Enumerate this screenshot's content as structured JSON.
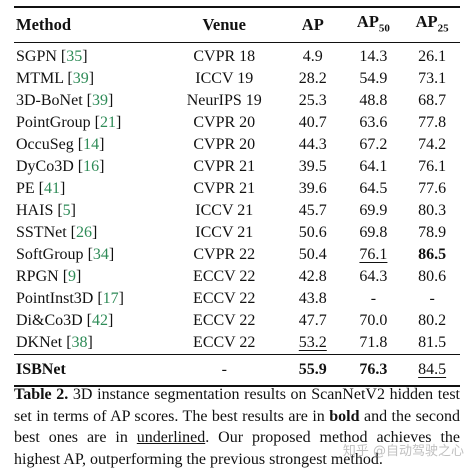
{
  "table": {
    "headers": {
      "method": "Method",
      "venue": "Venue",
      "ap": "AP",
      "ap50_base": "AP",
      "ap50_sub": "50",
      "ap25_base": "AP",
      "ap25_sub": "25"
    },
    "rows": [
      {
        "name": "SGPN",
        "ref": "35",
        "venue": "CVPR 18",
        "ap": "4.9",
        "ap50": "14.3",
        "ap25": "26.1"
      },
      {
        "name": "MTML",
        "ref": "39",
        "venue": "ICCV 19",
        "ap": "28.2",
        "ap50": "54.9",
        "ap25": "73.1"
      },
      {
        "name": "3D-BoNet",
        "ref": "39",
        "venue": "NeurIPS 19",
        "ap": "25.3",
        "ap50": "48.8",
        "ap25": "68.7"
      },
      {
        "name": "PointGroup",
        "ref": "21",
        "venue": "CVPR 20",
        "ap": "40.7",
        "ap50": "63.6",
        "ap25": "77.8"
      },
      {
        "name": "OccuSeg",
        "ref": "14",
        "venue": "CVPR 20",
        "ap": "44.3",
        "ap50": "67.2",
        "ap25": "74.2"
      },
      {
        "name": "DyCo3D",
        "ref": "16",
        "venue": "CVPR 21",
        "ap": "39.5",
        "ap50": "64.1",
        "ap25": "76.1"
      },
      {
        "name": "PE",
        "ref": "41",
        "venue": "CVPR 21",
        "ap": "39.6",
        "ap50": "64.5",
        "ap25": "77.6"
      },
      {
        "name": "HAIS",
        "ref": "5",
        "venue": "ICCV 21",
        "ap": "45.7",
        "ap50": "69.9",
        "ap25": "80.3"
      },
      {
        "name": "SSTNet",
        "ref": "26",
        "venue": "ICCV 21",
        "ap": "50.6",
        "ap50": "69.8",
        "ap25": "78.9"
      },
      {
        "name": "SoftGroup",
        "ref": "34",
        "venue": "CVPR 22",
        "ap": "50.4",
        "ap50": "76.1",
        "ap25": "86.5"
      },
      {
        "name": "RPGN",
        "ref": "9",
        "venue": "ECCV 22",
        "ap": "42.8",
        "ap50": "64.3",
        "ap25": "80.6"
      },
      {
        "name": "PointInst3D",
        "ref": "17",
        "venue": "ECCV 22",
        "ap": "43.8",
        "ap50": "-",
        "ap25": "-"
      },
      {
        "name": "Di&Co3D",
        "ref": "42",
        "venue": "ECCV 22",
        "ap": "47.7",
        "ap50": "70.0",
        "ap25": "80.2"
      },
      {
        "name": "DKNet",
        "ref": "38",
        "venue": "ECCV 22",
        "ap": "53.2",
        "ap50": "71.8",
        "ap25": "81.5"
      }
    ],
    "ours": {
      "name": "ISBNet",
      "venue": "-",
      "ap": "55.9",
      "ap50": "76.3",
      "ap25": "84.5"
    }
  },
  "caption": {
    "label": "Table 2.",
    "part1": " 3D instance segmentation results on ScanNetV2 hidden test set in terms of AP scores. The best results are in ",
    "bold_word": "bold",
    "part2": " and the second best ones are in ",
    "underlined_word": "underlined",
    "part3": ". Our proposed method achieves the highest AP, outperforming the previous strongest method."
  },
  "watermark": "知乎 @自动驾驶之心",
  "colors": {
    "reference_link": "#2e8b57",
    "text": "#111111"
  }
}
